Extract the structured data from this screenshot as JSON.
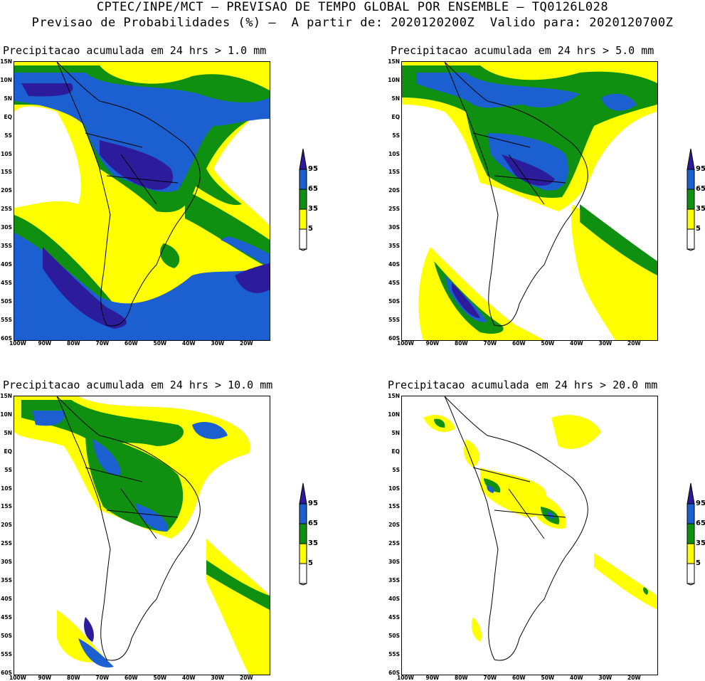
{
  "header": {
    "line1": "CPTEC/INPE/MCT — PREVISAO DE TEMPO GLOBAL POR ENSEMBLE — TQ0126L028",
    "line2": "Previsao de Probabilidades (%) —  A partir de: 2020120200Z  Valido para: 2020120700Z"
  },
  "panels": [
    {
      "title": "Precipitacao acumulada em 24 hrs > 1.0 mm"
    },
    {
      "title": "Precipitacao acumulada em 24 hrs > 5.0 mm"
    },
    {
      "title": "Precipitacao acumulada em 24 hrs > 10.0 mm"
    },
    {
      "title": "Precipitacao acumulada em 24 hrs > 20.0 mm"
    }
  ],
  "axes": {
    "lat_labels": [
      "15N",
      "10N",
      "5N",
      "EQ",
      "5S",
      "10S",
      "15S",
      "20S",
      "25S",
      "30S",
      "35S",
      "40S",
      "45S",
      "50S",
      "55S",
      "60S"
    ],
    "lon_labels": [
      "100W",
      "90W",
      "80W",
      "70W",
      "60W",
      "50W",
      "40W",
      "30W",
      "20W"
    ]
  },
  "legend": {
    "levels": [
      "95",
      "65",
      "35",
      "5"
    ],
    "colors": {
      "yellow": "#ffff00",
      "green": "#109010",
      "blue": "#1c5fd0",
      "purple": "#2c1c9c"
    }
  }
}
